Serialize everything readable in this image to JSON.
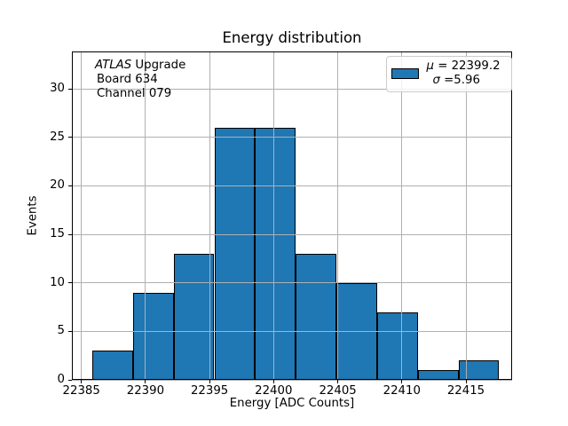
{
  "figure": {
    "title": "Energy distribution",
    "xlabel": "Energy [ADC Counts]",
    "ylabel": "Events"
  },
  "annotation": {
    "line1_italic": "ATLAS",
    "line1_rest": " Upgrade",
    "line2": "Board 634",
    "line3": "Channel 079"
  },
  "legend": {
    "mu_symbol": "μ",
    "mu_rest": " = 22399.2",
    "sigma_symbol": "σ",
    "sigma_rest": " =5.96"
  },
  "chart_data": {
    "type": "bar",
    "subtype": "histogram",
    "title": "Energy distribution",
    "xlabel": "Energy [ADC Counts]",
    "ylabel": "Events",
    "bin_edges": [
      22385.85,
      22389.02,
      22392.2,
      22395.37,
      22398.55,
      22401.72,
      22404.89,
      22408.07,
      22411.24,
      22414.42,
      22417.59
    ],
    "counts": [
      3,
      9,
      13,
      26,
      26,
      13,
      10,
      7,
      1,
      2
    ],
    "total_events": 110,
    "stats": {
      "mu": 22399.2,
      "sigma": 5.96
    },
    "legend_label_lines": [
      "μ = 22399.2",
      "σ =5.96"
    ],
    "legend_position": "upper right",
    "annotation_lines": [
      "ATLAS Upgrade",
      "Board 634",
      "Channel 079"
    ],
    "xlim": [
      22384.26,
      22418.6
    ],
    "ylim": [
      0,
      33.85
    ],
    "xticks": {
      "values": [
        22385,
        22390,
        22395,
        22400,
        22405,
        22410,
        22415
      ],
      "labels": [
        "22385",
        "22390",
        "22395",
        "22400",
        "22405",
        "22410",
        "22415"
      ]
    },
    "yticks": {
      "values": [
        0,
        5,
        10,
        15,
        20,
        25,
        30
      ],
      "labels": [
        "0",
        "5",
        "10",
        "15",
        "20",
        "25",
        "30"
      ]
    },
    "grid": true,
    "colors": {
      "bar_fill": "#1f77b4",
      "bar_edge": "#000000",
      "grid": "#b0b0b0",
      "spine": "#000000",
      "background": "#ffffff"
    }
  }
}
